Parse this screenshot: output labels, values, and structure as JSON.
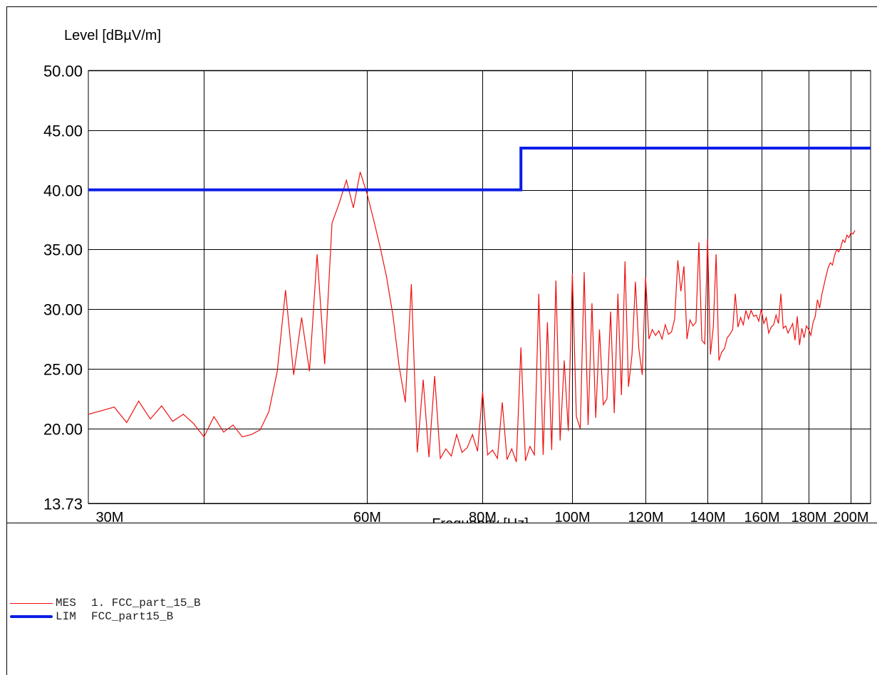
{
  "chart_data": {
    "type": "line",
    "ylabel": "Level [dBµV/m]",
    "xlabel": "Frequency [Hz]",
    "y_ticks": [
      "50.00",
      "45.00",
      "40.00",
      "35.00",
      "30.00",
      "25.00",
      "20.00",
      "13.73"
    ],
    "x_ticks": [
      "30M",
      "60M",
      "80M",
      "100M",
      "120M",
      "140M",
      "160M",
      "180M",
      "200M"
    ],
    "ylim": [
      13.73,
      50
    ],
    "xlim": [
      30,
      210
    ],
    "scale": "log",
    "grid": true,
    "series": [
      {
        "name": "MES",
        "label": "1. FCC_part_15_B",
        "color": "#ee1111",
        "points": [
          [
            30,
            21.2
          ],
          [
            31,
            21.5
          ],
          [
            32,
            21.8
          ],
          [
            33,
            20.5
          ],
          [
            34,
            22.3
          ],
          [
            35,
            20.8
          ],
          [
            36,
            21.9
          ],
          [
            37,
            20.6
          ],
          [
            38,
            21.2
          ],
          [
            39,
            20.4
          ],
          [
            40,
            19.3
          ],
          [
            41,
            21.0
          ],
          [
            42,
            19.7
          ],
          [
            43,
            20.3
          ],
          [
            44,
            19.3
          ],
          [
            45,
            19.5
          ],
          [
            46,
            19.9
          ],
          [
            47,
            21.4
          ],
          [
            48,
            24.8
          ],
          [
            49,
            31.6
          ],
          [
            50,
            24.5
          ],
          [
            51,
            29.3
          ],
          [
            52,
            24.8
          ],
          [
            53,
            34.6
          ],
          [
            54,
            25.4
          ],
          [
            55,
            37.2
          ],
          [
            56,
            38.9
          ],
          [
            57,
            40.8
          ],
          [
            58,
            38.5
          ],
          [
            59,
            41.5
          ],
          [
            60,
            39.7
          ],
          [
            61,
            37.5
          ],
          [
            62,
            35.2
          ],
          [
            63,
            32.7
          ],
          [
            64,
            29.5
          ],
          [
            65,
            25.2
          ],
          [
            66,
            22.2
          ],
          [
            67,
            32.1
          ],
          [
            68,
            18.0
          ],
          [
            69,
            24.1
          ],
          [
            70,
            17.6
          ],
          [
            71,
            24.4
          ],
          [
            72,
            17.5
          ],
          [
            73,
            18.3
          ],
          [
            74,
            17.7
          ],
          [
            75,
            19.5
          ],
          [
            76,
            18.0
          ],
          [
            77,
            18.4
          ],
          [
            78,
            19.5
          ],
          [
            79,
            18.1
          ],
          [
            80,
            23.1
          ],
          [
            81,
            17.8
          ],
          [
            82,
            18.2
          ],
          [
            83,
            17.5
          ],
          [
            84,
            22.2
          ],
          [
            85,
            17.4
          ],
          [
            86,
            18.3
          ],
          [
            87,
            17.2
          ],
          [
            88,
            26.8
          ],
          [
            89,
            17.3
          ],
          [
            90,
            18.5
          ],
          [
            91,
            17.8
          ],
          [
            92,
            31.3
          ],
          [
            93,
            17.8
          ],
          [
            94,
            28.9
          ],
          [
            95,
            18.2
          ],
          [
            96,
            32.4
          ],
          [
            97,
            19.0
          ],
          [
            98,
            25.7
          ],
          [
            99,
            19.8
          ],
          [
            100,
            33.0
          ],
          [
            101,
            21.0
          ],
          [
            102,
            20.0
          ],
          [
            103,
            33.1
          ],
          [
            104,
            20.3
          ],
          [
            105,
            30.5
          ],
          [
            106,
            20.9
          ],
          [
            107,
            28.3
          ],
          [
            108,
            22.0
          ],
          [
            109,
            22.5
          ],
          [
            110,
            29.8
          ],
          [
            111,
            21.3
          ],
          [
            112,
            31.3
          ],
          [
            113,
            22.8
          ],
          [
            114,
            34.0
          ],
          [
            115,
            23.5
          ],
          [
            116,
            26.2
          ],
          [
            117,
            32.3
          ],
          [
            118,
            26.7
          ],
          [
            119,
            24.5
          ],
          [
            120,
            32.7
          ],
          [
            121,
            27.5
          ],
          [
            122,
            28.3
          ],
          [
            123,
            27.8
          ],
          [
            124,
            28.2
          ],
          [
            125,
            27.5
          ],
          [
            126,
            28.7
          ],
          [
            127,
            27.9
          ],
          [
            128,
            28.1
          ],
          [
            129,
            29.2
          ],
          [
            130,
            34.1
          ],
          [
            131,
            31.5
          ],
          [
            132,
            33.6
          ],
          [
            133,
            27.5
          ],
          [
            134,
            29.1
          ],
          [
            135,
            28.6
          ],
          [
            136,
            28.9
          ],
          [
            137,
            35.6
          ],
          [
            138,
            27.4
          ],
          [
            139,
            27.1
          ],
          [
            140,
            35.9
          ],
          [
            141,
            26.2
          ],
          [
            142,
            28.5
          ],
          [
            143,
            34.6
          ],
          [
            144,
            25.7
          ],
          [
            145,
            26.4
          ],
          [
            146,
            26.7
          ],
          [
            147,
            27.6
          ],
          [
            148,
            27.9
          ],
          [
            149,
            28.3
          ],
          [
            150,
            31.3
          ],
          [
            151,
            28.5
          ],
          [
            152,
            29.3
          ],
          [
            153,
            28.7
          ],
          [
            154,
            29.9
          ],
          [
            155,
            29.2
          ],
          [
            156,
            29.9
          ],
          [
            157,
            29.4
          ],
          [
            158,
            29.5
          ],
          [
            159,
            29.0
          ],
          [
            160,
            30.0
          ],
          [
            161,
            28.8
          ],
          [
            162,
            29.3
          ],
          [
            163,
            28.0
          ],
          [
            164,
            28.5
          ],
          [
            165,
            28.7
          ],
          [
            166,
            29.5
          ],
          [
            167,
            28.8
          ],
          [
            168,
            31.3
          ],
          [
            169,
            28.4
          ],
          [
            170,
            28.6
          ],
          [
            171,
            28.0
          ],
          [
            172,
            28.4
          ],
          [
            173,
            28.8
          ],
          [
            174,
            27.4
          ],
          [
            175,
            29.4
          ],
          [
            176,
            27.0
          ],
          [
            177,
            28.4
          ],
          [
            178,
            27.6
          ],
          [
            179,
            28.6
          ],
          [
            180,
            28.3
          ],
          [
            181,
            27.8
          ],
          [
            182,
            28.9
          ],
          [
            183,
            29.4
          ],
          [
            184,
            30.8
          ],
          [
            185,
            30.1
          ],
          [
            186,
            31.2
          ],
          [
            187,
            32.0
          ],
          [
            188,
            32.8
          ],
          [
            189,
            33.5
          ],
          [
            190,
            33.9
          ],
          [
            191,
            33.7
          ],
          [
            192,
            34.5
          ],
          [
            193,
            35.0
          ],
          [
            194,
            34.8
          ],
          [
            195,
            35.2
          ],
          [
            196,
            35.8
          ],
          [
            197,
            35.6
          ],
          [
            198,
            36.2
          ],
          [
            199,
            36.0
          ],
          [
            200,
            36.4
          ],
          [
            201,
            36.3
          ],
          [
            202,
            36.6
          ]
        ]
      },
      {
        "name": "LIM",
        "label": "FCC_part15_B",
        "color": "#0a1ee6",
        "points": [
          [
            30,
            40.0
          ],
          [
            88,
            40.0
          ],
          [
            88,
            43.5
          ],
          [
            210,
            43.5
          ]
        ]
      }
    ]
  }
}
